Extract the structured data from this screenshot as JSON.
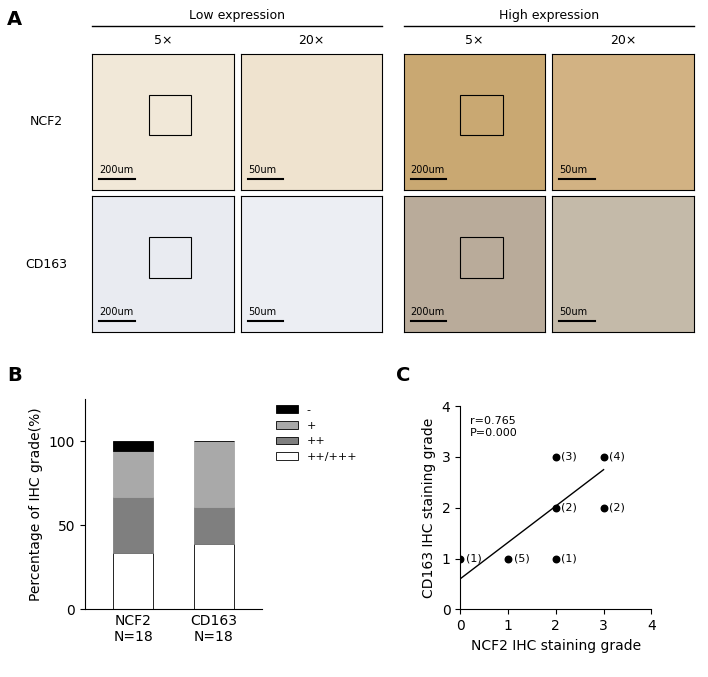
{
  "panel_labels": [
    "A",
    "B",
    "C"
  ],
  "panel_a": {
    "groups": [
      "Low expression",
      "High expression"
    ],
    "magnifications": [
      "5×",
      "20×"
    ],
    "rows": [
      "NCF2",
      "CD163"
    ],
    "scale_bars": [
      "200um",
      "50um"
    ]
  },
  "chart_data": [
    {
      "type": "bar",
      "stacked": true,
      "categories": [
        "NCF2\nN=18",
        "CD163\nN=18"
      ],
      "ylabel": "Percentage of IHC grade(%)",
      "ylim": [
        0,
        125
      ],
      "yticks": [
        0,
        50,
        100
      ],
      "legend": "upper left",
      "series": [
        {
          "name": "++/+++",
          "color": "#ffffff",
          "values": [
            33.3,
            38.9
          ]
        },
        {
          "name": "++",
          "color": "#7f7f7f",
          "values": [
            33.3,
            22.2
          ]
        },
        {
          "name": "+",
          "color": "#a9a9a9",
          "values": [
            27.8,
            38.9
          ]
        },
        {
          "name": "-",
          "color": "#000000",
          "values": [
            5.6,
            0
          ]
        }
      ]
    },
    {
      "type": "scatter",
      "color": "#000000",
      "marker": "o",
      "x": [
        0,
        1,
        2,
        2,
        2,
        3,
        3
      ],
      "y": [
        1,
        1,
        1,
        2,
        3,
        2,
        3
      ],
      "point_labels": [
        "(1)",
        "(5)",
        "(1)",
        "(2)",
        "(3)",
        "(2)",
        "(4)"
      ],
      "trend_line": {
        "x": [
          0,
          3
        ],
        "y": [
          0.6,
          2.75
        ]
      },
      "annotations": [
        "r=0.765",
        "P=0.000"
      ],
      "xlabel": "NCF2 IHC staining grade",
      "ylabel": "CD163 IHC staining grade",
      "xlim": [
        0,
        4
      ],
      "ylim": [
        0,
        4
      ],
      "xticks": [
        0,
        1,
        2,
        3,
        4
      ],
      "yticks": [
        0,
        1,
        2,
        3,
        4
      ]
    }
  ]
}
